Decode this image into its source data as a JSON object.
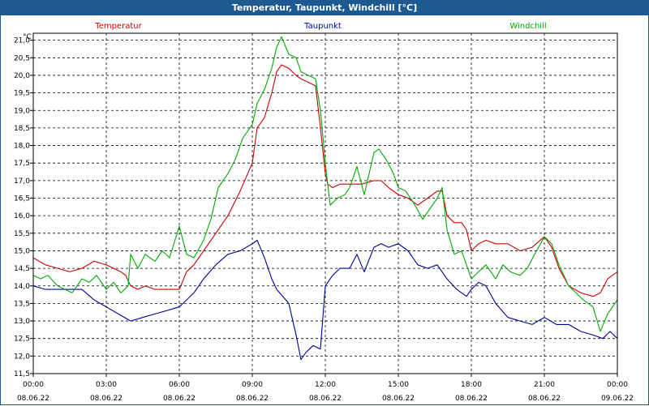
{
  "window": {
    "title": "Temperatur, Taupunkt, Windchill [°C]"
  },
  "chart_data": {
    "type": "line",
    "title": "Temperatur, Taupunkt, Windchill [°C]",
    "ylabel": "°C",
    "ylim": [
      11.5,
      21.2
    ],
    "yticks": [
      "21,0",
      "20,5",
      "20,0",
      "19,5",
      "19,0",
      "18,5",
      "18,0",
      "17,5",
      "17,0",
      "16,5",
      "16,0",
      "15,5",
      "15,0",
      "14,5",
      "14,0",
      "13,5",
      "13,0",
      "12,5",
      "12,0",
      "11,5"
    ],
    "ytick_values": [
      21.0,
      20.5,
      20.0,
      19.5,
      19.0,
      18.5,
      18.0,
      17.5,
      17.0,
      16.5,
      16.0,
      15.5,
      15.0,
      14.5,
      14.0,
      13.5,
      13.0,
      12.5,
      12.0,
      11.5
    ],
    "xlim": [
      0,
      24
    ],
    "xticks": [
      {
        "t": 0,
        "time": "00:00",
        "date": "08.06.22"
      },
      {
        "t": 3,
        "time": "03:00",
        "date": "08.06.22"
      },
      {
        "t": 6,
        "time": "06:00",
        "date": "08.06.22"
      },
      {
        "t": 9,
        "time": "09:00",
        "date": "08.06.22"
      },
      {
        "t": 12,
        "time": "12:00",
        "date": "08.06.22"
      },
      {
        "t": 15,
        "time": "15:00",
        "date": "08.06.22"
      },
      {
        "t": 18,
        "time": "18:00",
        "date": "08.06.22"
      },
      {
        "t": 21,
        "time": "21:00",
        "date": "08.06.22"
      },
      {
        "t": 24,
        "time": "00:00",
        "date": "09.06.22"
      }
    ],
    "grid": true,
    "legend": "top",
    "series": [
      {
        "name": "Temperatur",
        "color": "#cc0000",
        "x": [
          0,
          0.5,
          1,
          1.5,
          2,
          2.5,
          3,
          3.3,
          3.6,
          3.8,
          4,
          4.3,
          4.6,
          5,
          5.5,
          6,
          6.3,
          6.6,
          7,
          7.5,
          8,
          8.5,
          9,
          9.2,
          9.5,
          9.8,
          10,
          10.2,
          10.5,
          10.8,
          11,
          11.3,
          11.6,
          11.8,
          12,
          12.1,
          12.3,
          12.6,
          13,
          13.5,
          14,
          14.3,
          14.6,
          15,
          15.4,
          15.8,
          16.2,
          16.6,
          16.8,
          17,
          17.3,
          17.6,
          17.8,
          18,
          18.3,
          18.6,
          19,
          19.5,
          20,
          20.5,
          21,
          21.3,
          21.6,
          22,
          22.5,
          23,
          23.3,
          23.6,
          24
        ],
        "y": [
          14.8,
          14.6,
          14.5,
          14.4,
          14.5,
          14.7,
          14.6,
          14.5,
          14.4,
          14.3,
          14.0,
          13.9,
          14.0,
          13.9,
          13.9,
          13.9,
          14.4,
          14.6,
          15.0,
          15.5,
          16.0,
          16.7,
          17.5,
          18.5,
          18.8,
          19.5,
          20.1,
          20.3,
          20.2,
          20.0,
          19.9,
          19.8,
          19.7,
          18.5,
          17.2,
          16.9,
          16.8,
          16.9,
          16.9,
          16.9,
          17.0,
          17.0,
          16.8,
          16.6,
          16.5,
          16.3,
          16.5,
          16.7,
          16.7,
          16.0,
          15.8,
          15.8,
          15.6,
          15.0,
          15.2,
          15.3,
          15.2,
          15.2,
          15.0,
          15.1,
          15.4,
          15.1,
          14.5,
          14.0,
          13.8,
          13.7,
          13.8,
          14.2,
          14.4
        ]
      },
      {
        "name": "Taupunkt",
        "color": "#000099",
        "x": [
          0,
          0.5,
          1,
          1.5,
          2,
          2.5,
          3,
          3.5,
          4,
          4.5,
          5,
          5.5,
          6,
          6.3,
          6.6,
          7,
          7.5,
          8,
          8.5,
          9,
          9.2,
          9.5,
          9.8,
          10,
          10.5,
          10.8,
          11,
          11.2,
          11.5,
          11.8,
          12,
          12.3,
          12.6,
          13,
          13.3,
          13.6,
          14,
          14.3,
          14.6,
          15,
          15.4,
          15.8,
          16.2,
          16.6,
          17,
          17.4,
          17.8,
          18,
          18.3,
          18.6,
          19,
          19.5,
          20,
          20.5,
          21,
          21.5,
          22,
          22.5,
          23,
          23.4,
          23.7,
          24
        ],
        "y": [
          14.0,
          13.9,
          13.9,
          13.9,
          13.9,
          13.6,
          13.4,
          13.2,
          13.0,
          13.1,
          13.2,
          13.3,
          13.4,
          13.6,
          13.8,
          14.2,
          14.6,
          14.9,
          15.0,
          15.2,
          15.3,
          14.8,
          14.2,
          13.9,
          13.5,
          12.6,
          11.9,
          12.1,
          12.3,
          12.2,
          14.0,
          14.3,
          14.5,
          14.5,
          14.9,
          14.4,
          15.1,
          15.2,
          15.1,
          15.2,
          15.0,
          14.6,
          14.5,
          14.6,
          14.2,
          13.9,
          13.7,
          13.9,
          14.1,
          14.0,
          13.5,
          13.1,
          13.0,
          12.9,
          13.1,
          12.9,
          12.9,
          12.7,
          12.6,
          12.5,
          12.7,
          12.5
        ]
      },
      {
        "name": "Windchill",
        "color": "#00aa00",
        "x": [
          0,
          0.3,
          0.6,
          1,
          1.3,
          1.6,
          2,
          2.3,
          2.6,
          3,
          3.3,
          3.6,
          3.9,
          4,
          4.3,
          4.6,
          5,
          5.3,
          5.6,
          6,
          6.3,
          6.6,
          7,
          7.3,
          7.6,
          8,
          8.3,
          8.6,
          9,
          9.2,
          9.5,
          9.8,
          10,
          10.2,
          10.5,
          10.8,
          11,
          11.3,
          11.6,
          11.8,
          12,
          12.2,
          12.5,
          12.8,
          13,
          13.3,
          13.6,
          14,
          14.2,
          14.5,
          14.8,
          15,
          15.3,
          15.6,
          16,
          16.3,
          16.6,
          16.8,
          17,
          17.3,
          17.6,
          18,
          18.3,
          18.6,
          19,
          19.3,
          19.6,
          20,
          20.3,
          20.6,
          21,
          21.3,
          21.6,
          22,
          22.3,
          22.6,
          23,
          23.3,
          23.6,
          24
        ],
        "y": [
          14.3,
          14.2,
          14.3,
          14.0,
          13.9,
          13.8,
          14.2,
          14.1,
          14.3,
          13.9,
          14.1,
          13.8,
          14.0,
          14.9,
          14.5,
          14.9,
          14.7,
          15.0,
          14.8,
          15.7,
          14.9,
          14.8,
          15.3,
          15.9,
          16.8,
          17.2,
          17.6,
          18.2,
          18.6,
          19.2,
          19.6,
          20.2,
          20.8,
          21.1,
          20.6,
          20.5,
          20.1,
          20.0,
          19.9,
          19.0,
          17.5,
          16.3,
          16.5,
          16.6,
          16.8,
          17.4,
          16.6,
          17.8,
          17.9,
          17.6,
          17.2,
          16.8,
          16.7,
          16.4,
          15.9,
          16.2,
          16.5,
          16.8,
          15.6,
          14.9,
          15.0,
          14.2,
          14.4,
          14.6,
          14.2,
          14.6,
          14.4,
          14.3,
          14.5,
          14.9,
          15.4,
          15.2,
          14.6,
          14.0,
          13.8,
          13.6,
          13.4,
          12.7,
          13.2,
          13.6
        ]
      }
    ]
  }
}
